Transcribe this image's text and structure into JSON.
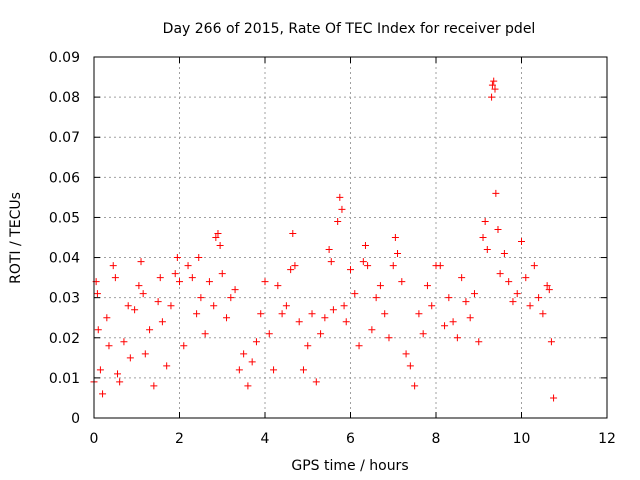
{
  "chart_data": {
    "type": "scatter",
    "title": "Day 266 of 2015, Rate Of TEC Index for receiver pdel",
    "xlabel": "GPS time / hours",
    "ylabel": "ROTI / TECUs",
    "xlim": [
      0,
      12
    ],
    "ylim": [
      0,
      0.09
    ],
    "x_ticks": [
      "0",
      "2",
      "4",
      "6",
      "8",
      "10",
      "12"
    ],
    "y_ticks": [
      "0",
      "0.01",
      "0.02",
      "0.03",
      "0.04",
      "0.05",
      "0.06",
      "0.07",
      "0.08",
      "0.09"
    ],
    "grid": true,
    "marker": "+",
    "color": "#ff0000",
    "series": [
      {
        "name": "ROTI",
        "points": [
          [
            0.0,
            0.009
          ],
          [
            0.05,
            0.034
          ],
          [
            0.08,
            0.031
          ],
          [
            0.1,
            0.022
          ],
          [
            0.15,
            0.012
          ],
          [
            0.2,
            0.006
          ],
          [
            0.3,
            0.025
          ],
          [
            0.35,
            0.018
          ],
          [
            0.45,
            0.038
          ],
          [
            0.5,
            0.035
          ],
          [
            0.55,
            0.011
          ],
          [
            0.6,
            0.009
          ],
          [
            0.7,
            0.019
          ],
          [
            0.8,
            0.028
          ],
          [
            0.85,
            0.015
          ],
          [
            0.95,
            0.027
          ],
          [
            1.05,
            0.033
          ],
          [
            1.1,
            0.039
          ],
          [
            1.15,
            0.031
          ],
          [
            1.2,
            0.016
          ],
          [
            1.3,
            0.022
          ],
          [
            1.4,
            0.008
          ],
          [
            1.5,
            0.029
          ],
          [
            1.55,
            0.035
          ],
          [
            1.6,
            0.024
          ],
          [
            1.7,
            0.013
          ],
          [
            1.8,
            0.028
          ],
          [
            1.9,
            0.036
          ],
          [
            1.95,
            0.04
          ],
          [
            2.0,
            0.034
          ],
          [
            2.1,
            0.018
          ],
          [
            2.2,
            0.038
          ],
          [
            2.3,
            0.035
          ],
          [
            2.4,
            0.026
          ],
          [
            2.45,
            0.04
          ],
          [
            2.5,
            0.03
          ],
          [
            2.6,
            0.021
          ],
          [
            2.7,
            0.034
          ],
          [
            2.8,
            0.028
          ],
          [
            2.85,
            0.045
          ],
          [
            2.9,
            0.046
          ],
          [
            2.95,
            0.043
          ],
          [
            3.0,
            0.036
          ],
          [
            3.1,
            0.025
          ],
          [
            3.2,
            0.03
          ],
          [
            3.3,
            0.032
          ],
          [
            3.4,
            0.012
          ],
          [
            3.5,
            0.016
          ],
          [
            3.6,
            0.008
          ],
          [
            3.7,
            0.014
          ],
          [
            3.8,
            0.019
          ],
          [
            3.9,
            0.026
          ],
          [
            4.0,
            0.034
          ],
          [
            4.1,
            0.021
          ],
          [
            4.2,
            0.012
          ],
          [
            4.3,
            0.033
          ],
          [
            4.4,
            0.026
          ],
          [
            4.5,
            0.028
          ],
          [
            4.6,
            0.037
          ],
          [
            4.65,
            0.046
          ],
          [
            4.7,
            0.038
          ],
          [
            4.8,
            0.024
          ],
          [
            4.9,
            0.012
          ],
          [
            5.0,
            0.018
          ],
          [
            5.1,
            0.026
          ],
          [
            5.2,
            0.009
          ],
          [
            5.3,
            0.021
          ],
          [
            5.4,
            0.025
          ],
          [
            5.5,
            0.042
          ],
          [
            5.55,
            0.039
          ],
          [
            5.6,
            0.027
          ],
          [
            5.7,
            0.049
          ],
          [
            5.75,
            0.055
          ],
          [
            5.8,
            0.052
          ],
          [
            5.85,
            0.028
          ],
          [
            5.9,
            0.024
          ],
          [
            6.0,
            0.037
          ],
          [
            6.1,
            0.031
          ],
          [
            6.2,
            0.018
          ],
          [
            6.3,
            0.039
          ],
          [
            6.35,
            0.043
          ],
          [
            6.4,
            0.038
          ],
          [
            6.5,
            0.022
          ],
          [
            6.6,
            0.03
          ],
          [
            6.7,
            0.033
          ],
          [
            6.8,
            0.026
          ],
          [
            6.9,
            0.02
          ],
          [
            7.0,
            0.038
          ],
          [
            7.05,
            0.045
          ],
          [
            7.1,
            0.041
          ],
          [
            7.2,
            0.034
          ],
          [
            7.3,
            0.016
          ],
          [
            7.4,
            0.013
          ],
          [
            7.5,
            0.008
          ],
          [
            7.6,
            0.026
          ],
          [
            7.7,
            0.021
          ],
          [
            7.8,
            0.033
          ],
          [
            7.9,
            0.028
          ],
          [
            8.0,
            0.038
          ],
          [
            8.1,
            0.038
          ],
          [
            8.2,
            0.023
          ],
          [
            8.3,
            0.03
          ],
          [
            8.4,
            0.024
          ],
          [
            8.5,
            0.02
          ],
          [
            8.6,
            0.035
          ],
          [
            8.7,
            0.029
          ],
          [
            8.8,
            0.025
          ],
          [
            8.9,
            0.031
          ],
          [
            9.0,
            0.019
          ],
          [
            9.1,
            0.045
          ],
          [
            9.15,
            0.049
          ],
          [
            9.2,
            0.042
          ],
          [
            9.3,
            0.08
          ],
          [
            9.32,
            0.083
          ],
          [
            9.35,
            0.084
          ],
          [
            9.38,
            0.082
          ],
          [
            9.4,
            0.056
          ],
          [
            9.45,
            0.047
          ],
          [
            9.5,
            0.036
          ],
          [
            9.6,
            0.041
          ],
          [
            9.7,
            0.034
          ],
          [
            9.8,
            0.029
          ],
          [
            9.9,
            0.031
          ],
          [
            10.0,
            0.044
          ],
          [
            10.1,
            0.035
          ],
          [
            10.2,
            0.028
          ],
          [
            10.3,
            0.038
          ],
          [
            10.4,
            0.03
          ],
          [
            10.5,
            0.026
          ],
          [
            10.6,
            0.033
          ],
          [
            10.65,
            0.032
          ],
          [
            10.7,
            0.019
          ],
          [
            10.75,
            0.005
          ]
        ]
      }
    ]
  }
}
